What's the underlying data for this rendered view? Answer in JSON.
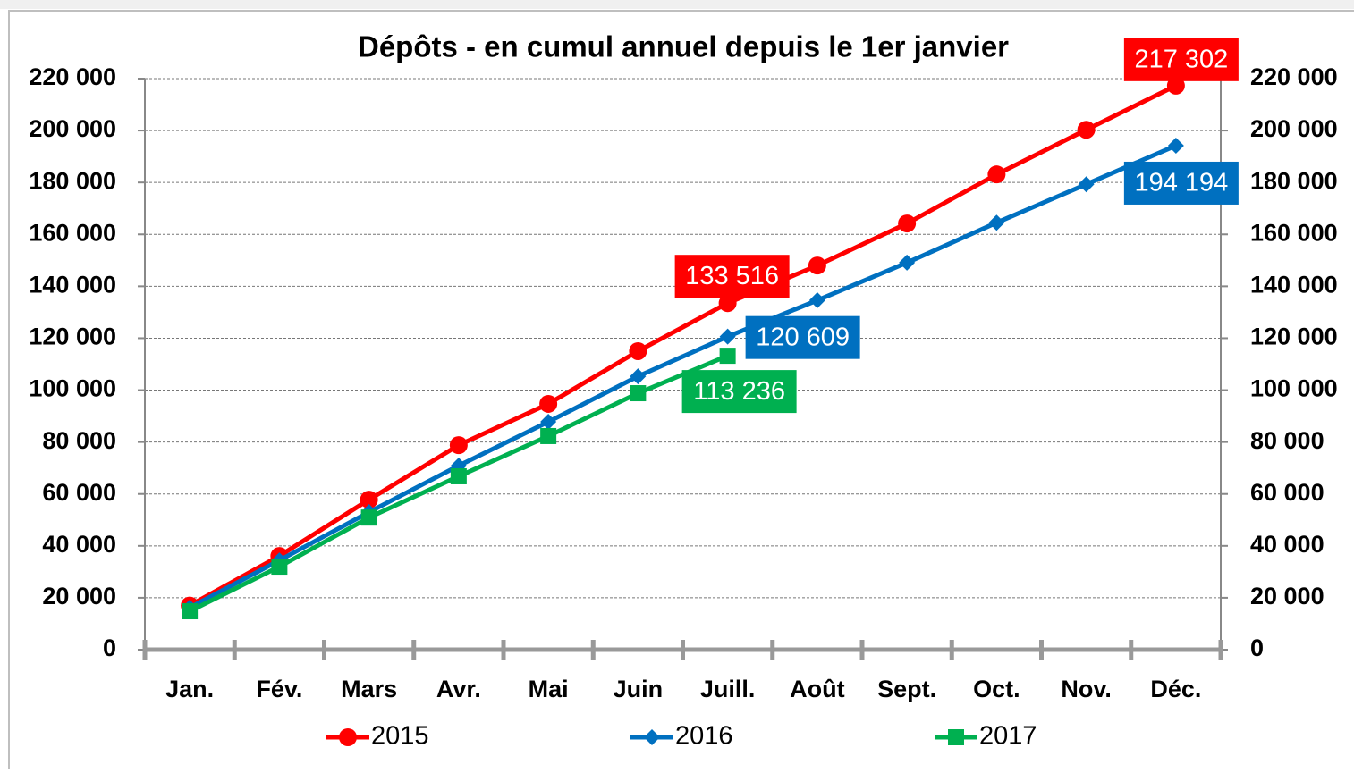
{
  "chart_data": {
    "type": "line",
    "title": "Dépôts - en cumul annuel depuis le 1er janvier",
    "categories": [
      "Jan.",
      "Fév.",
      "Mars",
      "Avr.",
      "Mai",
      "Juin",
      "Juill.",
      "Août",
      "Sept.",
      "Oct.",
      "Nov.",
      "Déc."
    ],
    "series": [
      {
        "name": "2015",
        "color": "#ff0000",
        "marker": "circle",
        "values": [
          17000,
          36100,
          57800,
          78800,
          94700,
          115000,
          133516,
          148000,
          164200,
          183100,
          200300,
          217302
        ],
        "value_labels": [
          null,
          null,
          null,
          null,
          null,
          null,
          "133 516",
          null,
          null,
          null,
          null,
          "217 302"
        ]
      },
      {
        "name": "2016",
        "color": "#0070c0",
        "marker": "diamond",
        "values": [
          16200,
          34400,
          53000,
          70900,
          87800,
          105300,
          120609,
          134600,
          149100,
          164500,
          179300,
          194194
        ],
        "value_labels": [
          null,
          null,
          null,
          null,
          null,
          null,
          "120 609",
          null,
          null,
          null,
          null,
          "194 194"
        ]
      },
      {
        "name": "2017",
        "color": "#00b050",
        "marker": "square",
        "values": [
          14800,
          32000,
          50900,
          66800,
          82300,
          98800,
          113236,
          null,
          null,
          null,
          null,
          null
        ],
        "value_labels": [
          null,
          null,
          null,
          null,
          null,
          null,
          "113 236",
          null,
          null,
          null,
          null,
          null
        ]
      }
    ],
    "ylim": [
      0,
      220000
    ],
    "yticks": [
      0,
      {
        "value": 20000,
        "label": "20 000"
      },
      {
        "value": 40000,
        "label": "40 000"
      },
      {
        "value": 60000,
        "label": "60 000"
      },
      {
        "value": 80000,
        "label": "80 000"
      },
      {
        "value": 100000,
        "label": "100 000"
      },
      {
        "value": 120000,
        "label": "120 000"
      },
      {
        "value": 140000,
        "label": "140 000"
      },
      {
        "value": 160000,
        "label": "160 000"
      },
      {
        "value": 180000,
        "label": "180 000"
      },
      {
        "value": 200000,
        "label": "200 000"
      },
      {
        "value": 220000,
        "label": "220 000"
      }
    ],
    "y2lim": [
      0,
      220000
    ],
    "y2ticks": [
      0,
      {
        "value": 20000,
        "label": "20 000"
      },
      {
        "value": 40000,
        "label": "40 000"
      },
      {
        "value": 60000,
        "label": "60 000"
      },
      {
        "value": 80000,
        "label": "80 000"
      },
      {
        "value": 100000,
        "label": "100 000"
      },
      {
        "value": 120000,
        "label": "120 000"
      },
      {
        "value": 140000,
        "label": "140 000"
      },
      {
        "value": 160000,
        "label": "160 000"
      },
      {
        "value": 180000,
        "label": "180 000"
      },
      {
        "value": 200000,
        "label": "200 000"
      },
      {
        "value": 220000,
        "label": "220 000"
      }
    ],
    "grid": true,
    "legend": "bottom"
  }
}
